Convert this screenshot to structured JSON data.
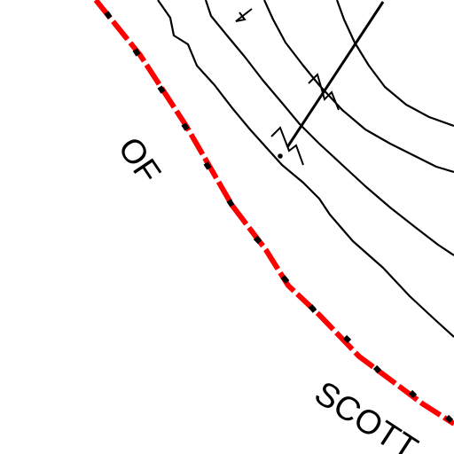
{
  "map": {
    "background_color": "#ffffff",
    "line_color": "#000000",
    "boundary_color": "#ff0000",
    "labels": {
      "of": "OF",
      "scott": "SCOTT"
    }
  }
}
